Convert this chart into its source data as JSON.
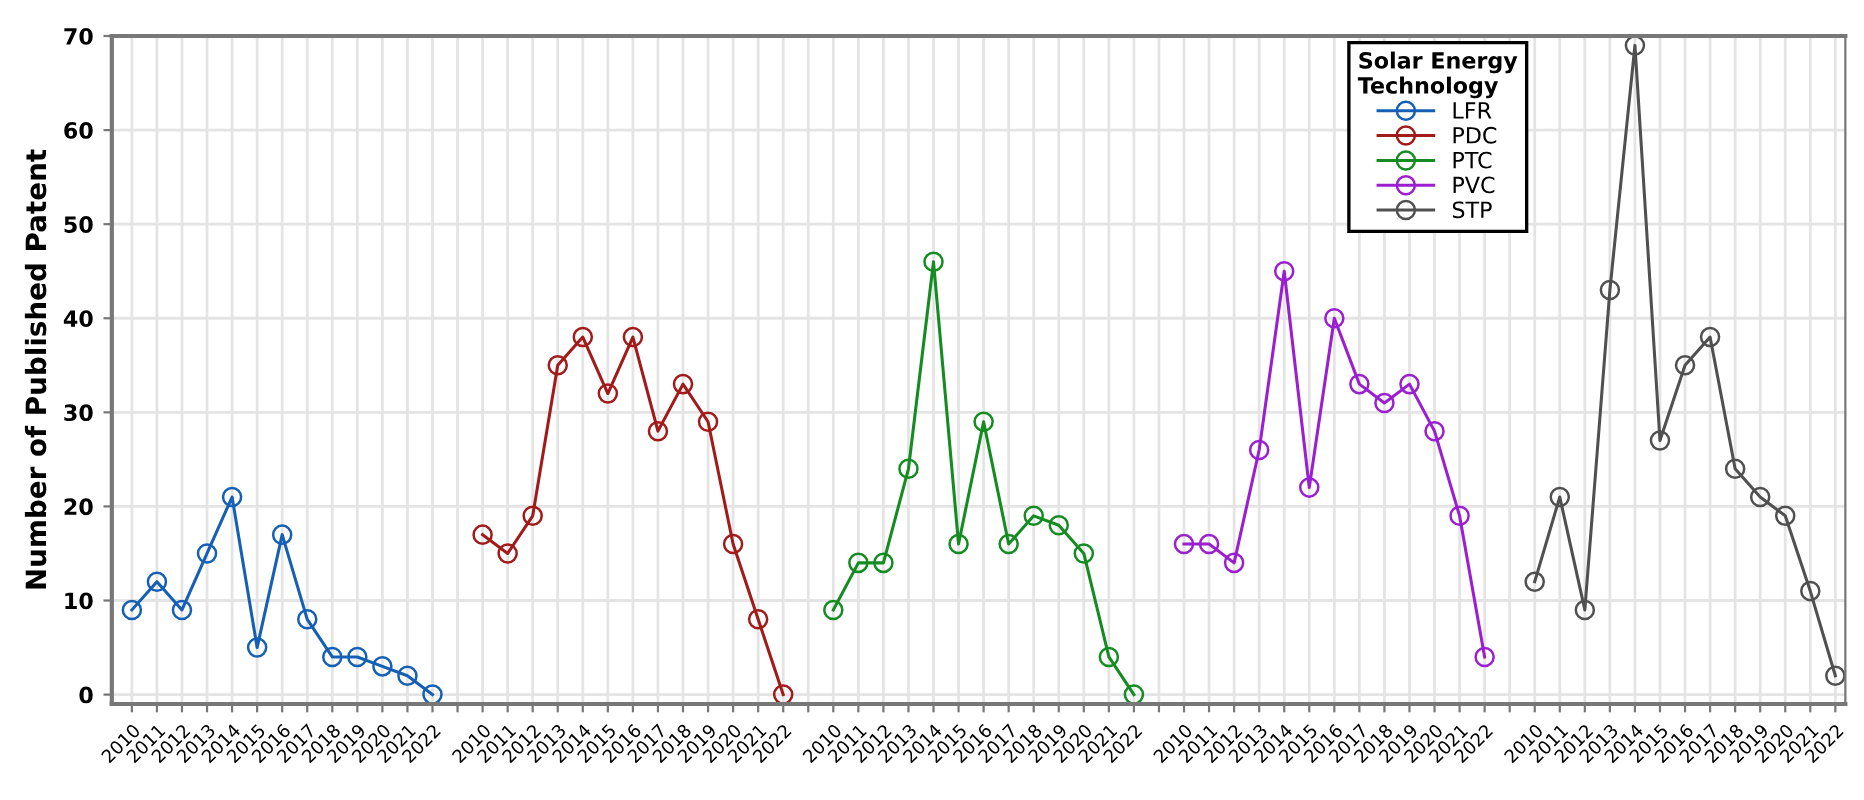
{
  "chart_data": {
    "type": "line",
    "ylabel": "Number of Published Patent",
    "legend_title": "Solar Energy Technology",
    "categories": [
      "2010",
      "2011",
      "2012",
      "2013",
      "2014",
      "2015",
      "2016",
      "2017",
      "2018",
      "2019",
      "2020",
      "2021",
      "2022",
      null,
      "2010",
      "2011",
      "2012",
      "2013",
      "2014",
      "2015",
      "2016",
      "2017",
      "2018",
      "2019",
      "2020",
      "2021",
      "2022",
      null,
      "2010",
      "2011",
      "2012",
      "2013",
      "2014",
      "2015",
      "2016",
      "2017",
      "2018",
      "2019",
      "2020",
      "2021",
      "2022",
      null,
      "2010",
      "2011",
      "2012",
      "2013",
      "2014",
      "2015",
      "2016",
      "2017",
      "2018",
      "2019",
      "2020",
      "2021",
      "2022",
      null,
      "2010",
      "2011",
      "2012",
      "2013",
      "2014",
      "2015",
      "2016",
      "2017",
      "2018",
      "2019",
      "2020",
      "2021",
      "2022"
    ],
    "series": [
      {
        "name": "LFR",
        "color": "#1560b5",
        "values": [
          9,
          12,
          9,
          15,
          21,
          5,
          17,
          8,
          4,
          4,
          3,
          2,
          0,
          null,
          null,
          null,
          null,
          null,
          null,
          null,
          null,
          null,
          null,
          null,
          null,
          null,
          null,
          null,
          null,
          null,
          null,
          null,
          null,
          null,
          null,
          null,
          null,
          null,
          null,
          null,
          null,
          null,
          null,
          null,
          null,
          null,
          null,
          null,
          null,
          null,
          null,
          null,
          null,
          null,
          null,
          null,
          null,
          null,
          null,
          null,
          null,
          null,
          null,
          null,
          null,
          null,
          null,
          null,
          null
        ]
      },
      {
        "name": "PDC",
        "color": "#a31a1a",
        "values": [
          null,
          null,
          null,
          null,
          null,
          null,
          null,
          null,
          null,
          null,
          null,
          null,
          null,
          null,
          17,
          15,
          19,
          35,
          38,
          32,
          38,
          28,
          33,
          29,
          16,
          8,
          0,
          null,
          null,
          null,
          null,
          null,
          null,
          null,
          null,
          null,
          null,
          null,
          null,
          null,
          null,
          null,
          null,
          null,
          null,
          null,
          null,
          null,
          null,
          null,
          null,
          null,
          null,
          null,
          null,
          null,
          null,
          null,
          null,
          null,
          null,
          null,
          null,
          null,
          null,
          null,
          null,
          null,
          null
        ]
      },
      {
        "name": "PTC",
        "color": "#148c22",
        "values": [
          null,
          null,
          null,
          null,
          null,
          null,
          null,
          null,
          null,
          null,
          null,
          null,
          null,
          null,
          null,
          null,
          null,
          null,
          null,
          null,
          null,
          null,
          null,
          null,
          null,
          null,
          null,
          null,
          9,
          14,
          14,
          24,
          46,
          16,
          29,
          16,
          19,
          18,
          15,
          4,
          0,
          null,
          null,
          null,
          null,
          null,
          null,
          null,
          null,
          null,
          null,
          null,
          null,
          null,
          null,
          null,
          null,
          null,
          null,
          null,
          null,
          null,
          null,
          null,
          null,
          null,
          null,
          null,
          null
        ]
      },
      {
        "name": "PVC",
        "color": "#9b1fd1",
        "values": [
          null,
          null,
          null,
          null,
          null,
          null,
          null,
          null,
          null,
          null,
          null,
          null,
          null,
          null,
          null,
          null,
          null,
          null,
          null,
          null,
          null,
          null,
          null,
          null,
          null,
          null,
          null,
          null,
          null,
          null,
          null,
          null,
          null,
          null,
          null,
          null,
          null,
          null,
          null,
          null,
          null,
          null,
          16,
          16,
          14,
          26,
          45,
          22,
          40,
          33,
          31,
          33,
          28,
          19,
          4,
          null,
          null,
          null,
          null,
          null,
          null,
          null,
          null,
          null,
          null,
          null,
          null,
          null,
          null
        ]
      },
      {
        "name": "STP",
        "color": "#505050",
        "values": [
          null,
          null,
          null,
          null,
          null,
          null,
          null,
          null,
          null,
          null,
          null,
          null,
          null,
          null,
          null,
          null,
          null,
          null,
          null,
          null,
          null,
          null,
          null,
          null,
          null,
          null,
          null,
          null,
          null,
          null,
          null,
          null,
          null,
          null,
          null,
          null,
          null,
          null,
          null,
          null,
          null,
          null,
          null,
          null,
          null,
          null,
          null,
          null,
          null,
          null,
          null,
          null,
          null,
          null,
          null,
          null,
          12,
          21,
          9,
          43,
          69,
          27,
          35,
          38,
          24,
          21,
          19,
          11,
          2
        ]
      }
    ],
    "ylim": [
      -1,
      70
    ],
    "yticks": [
      0,
      10,
      20,
      30,
      40,
      50,
      60,
      70
    ],
    "grid": true,
    "legend": "top right",
    "marker": "circle",
    "line_style": "solid"
  }
}
